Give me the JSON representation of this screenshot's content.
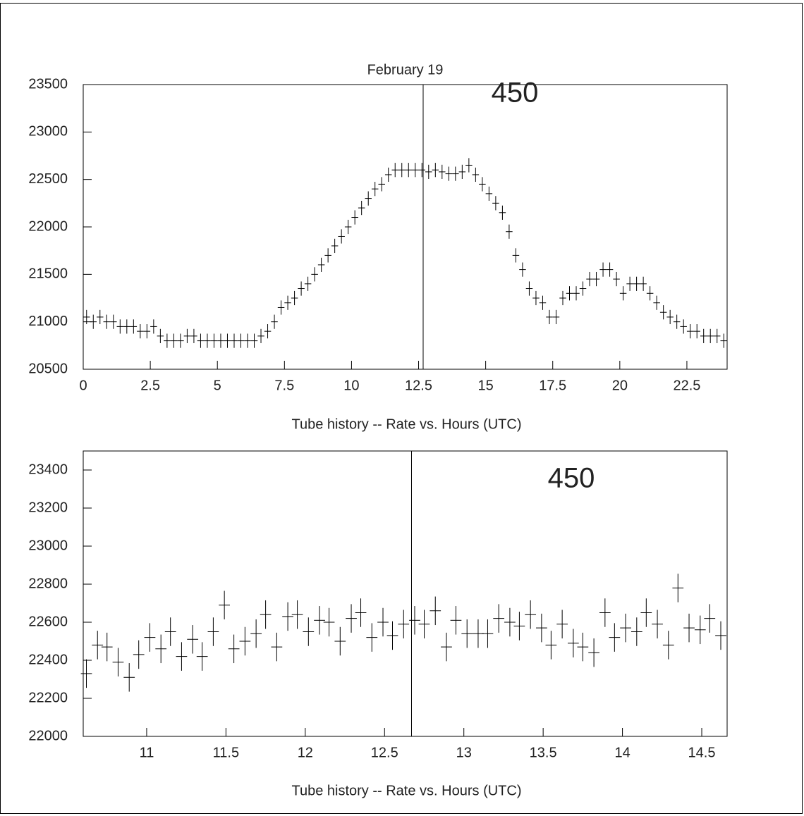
{
  "chart_data": [
    {
      "type": "errorbar",
      "title": "February 19",
      "x_label": "Tube history -- Rate vs. Hours (UTC)",
      "annotation": "450",
      "marker_x": 12.67,
      "xlim": [
        0,
        24
      ],
      "xticks": [
        0,
        2.5,
        5,
        7.5,
        10,
        12.5,
        15,
        17.5,
        20,
        22.5
      ],
      "ylim": [
        20500,
        23500
      ],
      "yticks": [
        20500,
        21000,
        21500,
        22000,
        22500,
        23000,
        23500
      ],
      "error": 75,
      "x": [
        0.125,
        0.375,
        0.625,
        0.875,
        1.125,
        1.375,
        1.625,
        1.875,
        2.125,
        2.375,
        2.625,
        2.875,
        3.125,
        3.375,
        3.625,
        3.875,
        4.125,
        4.375,
        4.625,
        4.875,
        5.125,
        5.375,
        5.625,
        5.875,
        6.125,
        6.375,
        6.625,
        6.875,
        7.125,
        7.375,
        7.625,
        7.875,
        8.125,
        8.375,
        8.625,
        8.875,
        9.125,
        9.375,
        9.625,
        9.875,
        10.125,
        10.375,
        10.625,
        10.875,
        11.125,
        11.375,
        11.625,
        11.875,
        12.125,
        12.375,
        12.625,
        12.875,
        13.125,
        13.375,
        13.625,
        13.875,
        14.125,
        14.375,
        14.625,
        14.875,
        15.125,
        15.375,
        15.625,
        15.875,
        16.125,
        16.375,
        16.625,
        16.875,
        17.125,
        17.375,
        17.625,
        17.875,
        18.125,
        18.375,
        18.625,
        18.875,
        19.125,
        19.375,
        19.625,
        19.875,
        20.125,
        20.375,
        20.625,
        20.875,
        21.125,
        21.375,
        21.625,
        21.875,
        22.125,
        22.375,
        22.625,
        22.875,
        23.125,
        23.375,
        23.625,
        23.875
      ],
      "values": [
        21050,
        21000,
        21050,
        21000,
        21000,
        20950,
        20950,
        20950,
        20900,
        20900,
        20950,
        20850,
        20800,
        20800,
        20800,
        20850,
        20850,
        20800,
        20800,
        20800,
        20800,
        20800,
        20800,
        20800,
        20800,
        20800,
        20850,
        20900,
        21000,
        21150,
        21200,
        21250,
        21350,
        21400,
        21500,
        21600,
        21700,
        21800,
        21900,
        22000,
        22100,
        22200,
        22300,
        22400,
        22450,
        22550,
        22600,
        22600,
        22600,
        22600,
        22600,
        22580,
        22600,
        22580,
        22560,
        22560,
        22580,
        22650,
        22550,
        22450,
        22350,
        22250,
        22150,
        21950,
        21700,
        21550,
        21350,
        21250,
        21200,
        21050,
        21050,
        21250,
        21300,
        21300,
        21350,
        21450,
        21450,
        21550,
        21550,
        21450,
        21300,
        21400,
        21400,
        21400,
        21300,
        21200,
        21100,
        21050,
        21000,
        20950,
        20900,
        20900,
        20850,
        20850,
        20850,
        20800
      ]
    },
    {
      "type": "errorbar",
      "x_label": "Tube history -- Rate vs. Hours (UTC)",
      "annotation": "450",
      "marker_x": 12.67,
      "xlim": [
        10.6,
        14.66
      ],
      "xticks": [
        11,
        11.5,
        12,
        12.5,
        13,
        13.5,
        14,
        14.5
      ],
      "ylim": [
        22000,
        23500
      ],
      "yticks": [
        22000,
        22200,
        22400,
        22600,
        22800,
        23000,
        23200,
        23400
      ],
      "error": 75,
      "x": [
        10.62,
        10.69,
        10.75,
        10.82,
        10.89,
        10.95,
        11.02,
        11.09,
        11.15,
        11.22,
        11.29,
        11.35,
        11.42,
        11.49,
        11.55,
        11.62,
        11.69,
        11.75,
        11.82,
        11.89,
        11.95,
        12.02,
        12.09,
        12.15,
        12.22,
        12.29,
        12.35,
        12.42,
        12.49,
        12.55,
        12.62,
        12.69,
        12.75,
        12.82,
        12.89,
        12.95,
        13.02,
        13.09,
        13.15,
        13.22,
        13.29,
        13.35,
        13.42,
        13.49,
        13.55,
        13.62,
        13.69,
        13.75,
        13.82,
        13.89,
        13.95,
        14.02,
        14.09,
        14.15,
        14.22,
        14.29,
        14.35,
        14.42,
        14.49,
        14.55,
        14.62
      ],
      "values": [
        22330,
        22480,
        22470,
        22390,
        22310,
        22430,
        22520,
        22460,
        22550,
        22420,
        22510,
        22420,
        22550,
        22690,
        22460,
        22500,
        22540,
        22640,
        22470,
        22630,
        22640,
        22550,
        22610,
        22600,
        22500,
        22620,
        22650,
        22520,
        22600,
        22530,
        22590,
        22610,
        22590,
        22660,
        22470,
        22610,
        22540,
        22540,
        22540,
        22620,
        22600,
        22580,
        22640,
        22570,
        22480,
        22590,
        22490,
        22470,
        22440,
        22650,
        22520,
        22570,
        22550,
        22650,
        22590,
        22480,
        22780,
        22570,
        22560,
        22620,
        22530
      ]
    }
  ]
}
